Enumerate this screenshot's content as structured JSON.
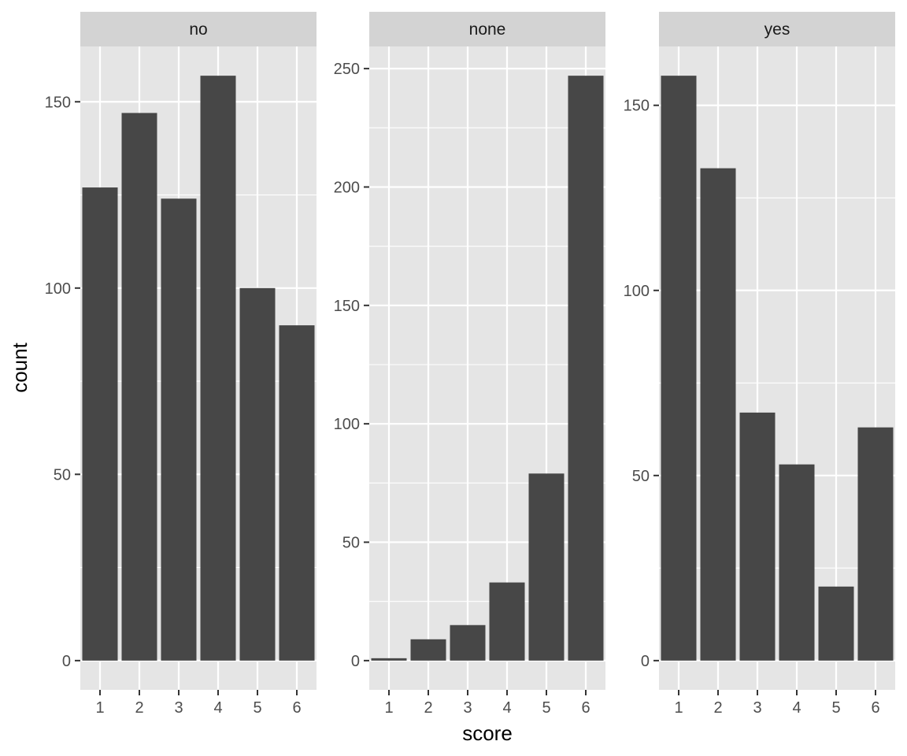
{
  "chart_data": {
    "type": "bar",
    "facet_layout": "columns",
    "independent_y": true,
    "xlabel": "score",
    "ylabel": "count",
    "x_categories": [
      "1",
      "2",
      "3",
      "4",
      "5",
      "6"
    ],
    "panels": [
      {
        "facet": "no",
        "values": [
          127,
          147,
          124,
          157,
          100,
          90
        ],
        "ylim": [
          -7.85,
          164.85
        ],
        "y_ticks": [
          0,
          50,
          100,
          150
        ],
        "y_tick_labels": [
          "0",
          "50",
          "100",
          "150"
        ]
      },
      {
        "facet": "none",
        "values": [
          1,
          9,
          15,
          33,
          79,
          247
        ],
        "ylim": [
          -12.35,
          259.35
        ],
        "y_ticks": [
          0,
          50,
          100,
          150,
          200,
          250
        ],
        "y_tick_labels": [
          "0",
          "50",
          "100",
          "150",
          "200",
          "250"
        ]
      },
      {
        "facet": "yes",
        "values": [
          158,
          133,
          67,
          53,
          20,
          63
        ],
        "ylim": [
          -7.9,
          165.9
        ],
        "y_ticks": [
          0,
          50,
          100,
          150
        ],
        "y_tick_labels": [
          "0",
          "50",
          "100",
          "150"
        ]
      }
    ]
  }
}
